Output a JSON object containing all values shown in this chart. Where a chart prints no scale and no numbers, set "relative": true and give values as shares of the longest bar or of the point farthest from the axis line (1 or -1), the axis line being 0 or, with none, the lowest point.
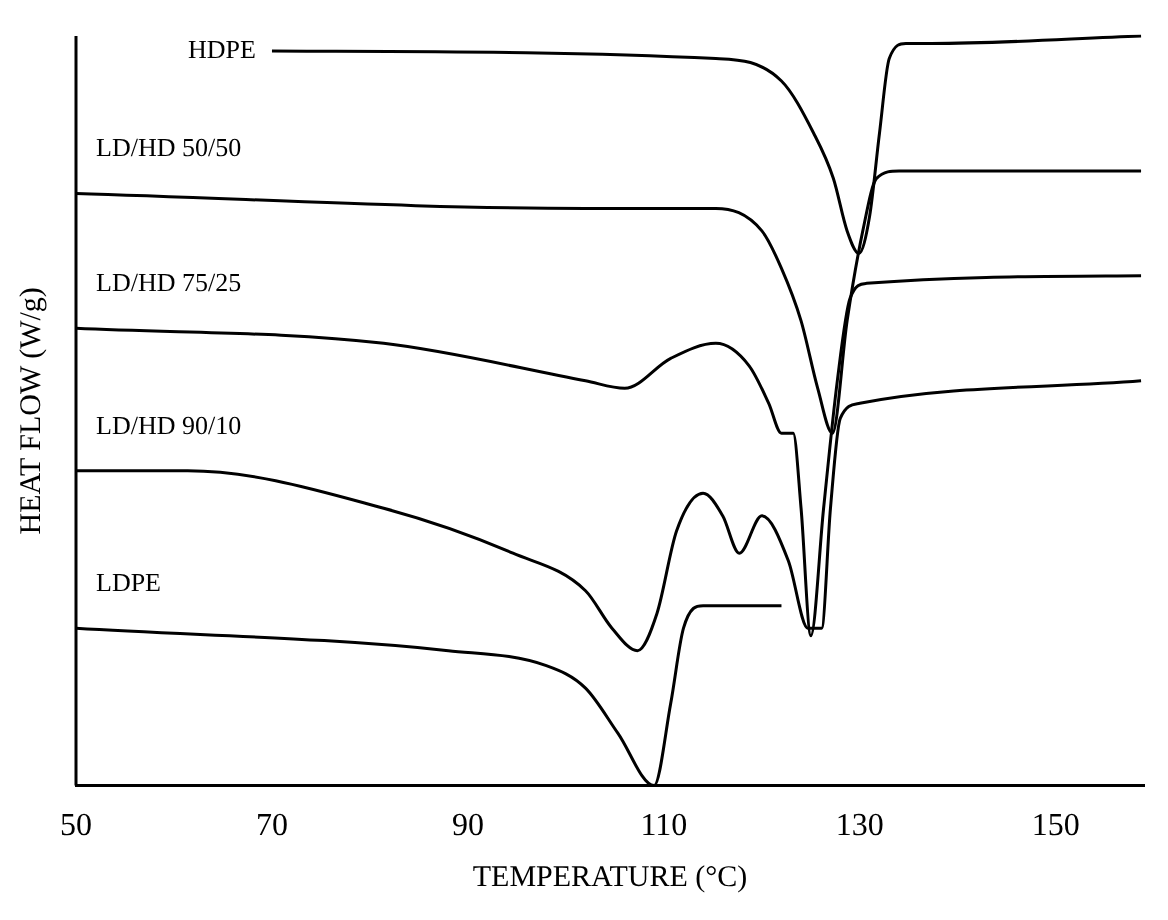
{
  "chart_data": {
    "type": "line",
    "relative": true,
    "xlabel": "TEMPERATURE (°C)",
    "ylabel": "HEAT FLOW (W/g)",
    "xlim": [
      50,
      159
    ],
    "xticks": [
      50,
      70,
      90,
      110,
      130,
      150
    ],
    "grid": false,
    "legend": false,
    "marker": "none",
    "line_style": "solid",
    "series": [
      {
        "name": "HDPE",
        "color": "#000000",
        "x": [
          70,
          115.3,
          122,
          125.3,
          127.3,
          128.7,
          129.9,
          131,
          132,
          133,
          134.7,
          137.3,
          158.7
        ],
        "values": [
          0.98,
          0.97,
          0.94,
          0.87,
          0.81,
          0.74,
          0.71,
          0.76,
          0.87,
          0.97,
          0.99,
          0.99,
          1.0
        ]
      },
      {
        "name": "LD/HD 50/50",
        "color": "#000000",
        "x": [
          50,
          102,
          115.3,
          120,
          122,
          124,
          125.7,
          127.2,
          128.7,
          130.3,
          131.7,
          134,
          158.7
        ],
        "values": [
          0.79,
          0.77,
          0.77,
          0.74,
          0.69,
          0.62,
          0.53,
          0.47,
          0.62,
          0.74,
          0.81,
          0.82,
          0.82
        ]
      },
      {
        "name": "LD/HD 75/25",
        "color": "#000000",
        "x": [
          50,
          81.4,
          102,
          106,
          110.7,
          115.3,
          118.7,
          120.7,
          122,
          123.2,
          124,
          125,
          126.3,
          127.7,
          129,
          130.7,
          158.7
        ],
        "values": [
          0.61,
          0.59,
          0.54,
          0.53,
          0.57,
          0.59,
          0.56,
          0.51,
          0.47,
          0.47,
          0.37,
          0.2,
          0.37,
          0.54,
          0.65,
          0.67,
          0.68
        ]
      },
      {
        "name": "LD/HD 90/10",
        "color": "#000000",
        "x": [
          50,
          61.4,
          81.4,
          94.6,
          102,
          104.7,
          107.3,
          109.3,
          111.3,
          114,
          116,
          117.7,
          120,
          122.7,
          124.7,
          126.1,
          127,
          128,
          130,
          158.7
        ],
        "values": [
          0.42,
          0.42,
          0.37,
          0.31,
          0.26,
          0.21,
          0.18,
          0.23,
          0.34,
          0.39,
          0.36,
          0.31,
          0.36,
          0.3,
          0.21,
          0.21,
          0.37,
          0.49,
          0.51,
          0.54
        ]
      },
      {
        "name": "LDPE",
        "color": "#000000",
        "x": [
          50,
          88,
          98,
          102,
          105.3,
          109,
          110.7,
          112,
          114,
          122
        ],
        "values": [
          0.21,
          0.18,
          0.16,
          0.13,
          0.07,
          0,
          0.11,
          0.21,
          0.24,
          0.24
        ]
      }
    ]
  }
}
